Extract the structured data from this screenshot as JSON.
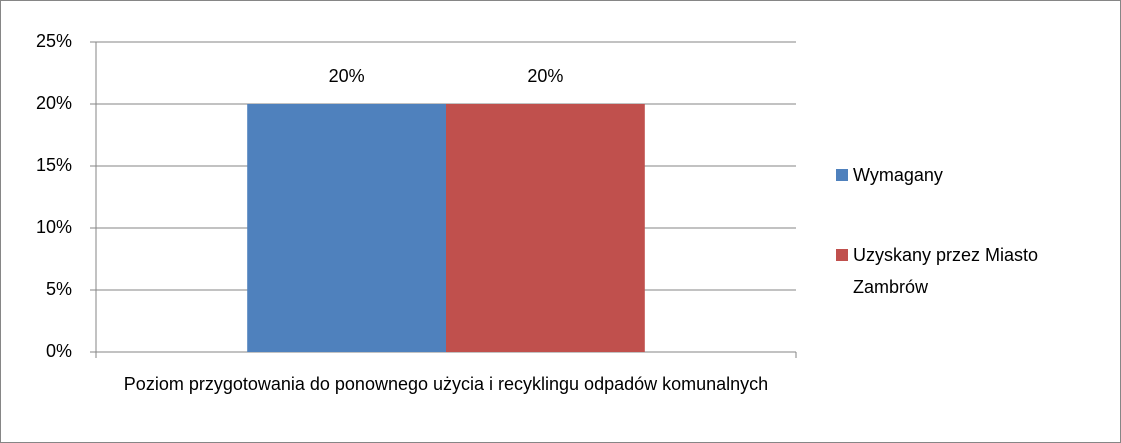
{
  "chart_data": {
    "type": "bar",
    "categories": [
      "Poziom przygotowania do ponownego użycia i recyklingu odpadów komunalnych"
    ],
    "series": [
      {
        "name": "Wymagany",
        "color": "#4f81bd",
        "values": [
          20
        ],
        "value_labels": [
          "20%"
        ]
      },
      {
        "name": "Uzyskany przez Miasto Zambrów",
        "color": "#c0504d",
        "values": [
          20
        ],
        "value_labels": [
          "20%"
        ]
      }
    ],
    "ylim": [
      0,
      25
    ],
    "yticks": [
      {
        "value": 0,
        "label": "0%"
      },
      {
        "value": 5,
        "label": "5%"
      },
      {
        "value": 10,
        "label": "10%"
      },
      {
        "value": 15,
        "label": "15%"
      },
      {
        "value": 20,
        "label": "20%"
      },
      {
        "value": 25,
        "label": "25%"
      }
    ],
    "grid": true,
    "legend": "right"
  }
}
